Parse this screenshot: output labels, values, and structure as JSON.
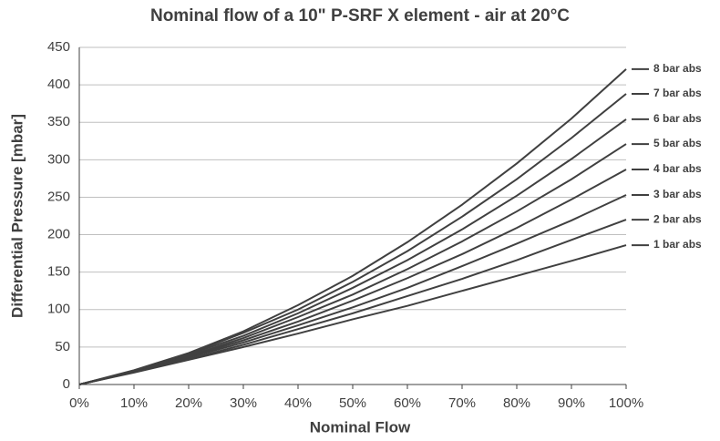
{
  "chart_data": {
    "type": "line",
    "title": "Nominal flow of a 10\" P-SRF X element - air at 20°C",
    "x_label": "Nominal Flow",
    "y_label": "Differential Pressure  [mbar]",
    "x": [
      0,
      10,
      20,
      30,
      40,
      50,
      60,
      70,
      80,
      90,
      100
    ],
    "xlim": [
      0,
      100
    ],
    "xticks": [
      {
        "value": 0,
        "label": "0%"
      },
      {
        "value": 10,
        "label": "10%"
      },
      {
        "value": 20,
        "label": "20%"
      },
      {
        "value": 30,
        "label": "30%"
      },
      {
        "value": 40,
        "label": "40%"
      },
      {
        "value": 50,
        "label": "50%"
      },
      {
        "value": 60,
        "label": "60%"
      },
      {
        "value": 70,
        "label": "70%"
      },
      {
        "value": 80,
        "label": "80%"
      },
      {
        "value": 90,
        "label": "90%"
      },
      {
        "value": 100,
        "label": "100%"
      }
    ],
    "ylim": [
      0,
      450
    ],
    "yticks": [
      0,
      50,
      100,
      150,
      200,
      250,
      300,
      350,
      400,
      450
    ],
    "grid": true,
    "series": [
      {
        "name": "1 bar abs",
        "color": "#404040",
        "values": [
          0,
          16,
          33,
          50,
          68,
          87,
          105,
          125,
          145,
          165,
          186
        ]
      },
      {
        "name": "2 bar abs",
        "color": "#404040",
        "values": [
          0,
          17,
          34,
          53,
          74,
          95,
          118,
          141,
          166,
          193,
          220
        ]
      },
      {
        "name": "3 bar abs",
        "color": "#404040",
        "values": [
          0,
          17,
          36,
          56,
          79,
          103,
          129,
          158,
          188,
          219,
          253
        ]
      },
      {
        "name": "4 bar abs",
        "color": "#404040",
        "values": [
          0,
          17,
          37,
          59,
          84,
          112,
          142,
          174,
          209,
          247,
          287
        ]
      },
      {
        "name": "5 bar abs",
        "color": "#404040",
        "values": [
          0,
          18,
          38,
          62,
          90,
          120,
          154,
          191,
          231,
          274,
          321
        ]
      },
      {
        "name": "6 bar abs",
        "color": "#404040",
        "values": [
          0,
          18,
          40,
          65,
          95,
          129,
          166,
          207,
          252,
          301,
          354
        ]
      },
      {
        "name": "7 bar abs",
        "color": "#404040",
        "values": [
          0,
          18,
          41,
          69,
          100,
          137,
          178,
          224,
          274,
          329,
          388
        ]
      },
      {
        "name": "8 bar abs",
        "color": "#404040",
        "values": [
          0,
          19,
          42,
          71,
          106,
          145,
          190,
          240,
          295,
          355,
          421
        ]
      }
    ]
  }
}
